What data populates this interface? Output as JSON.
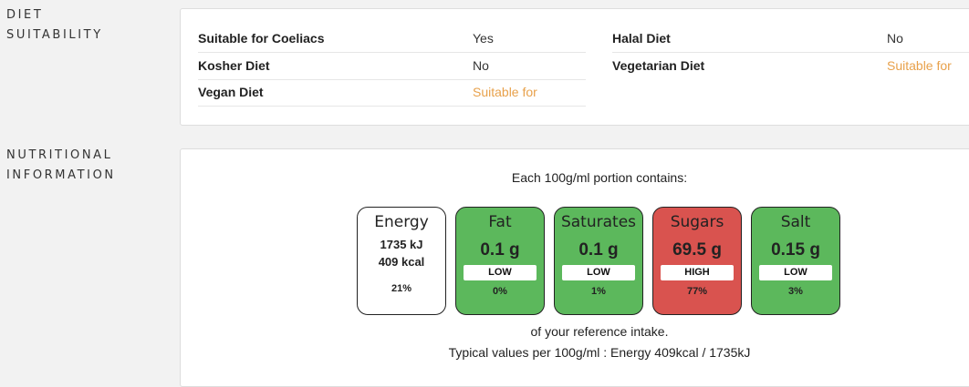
{
  "diet": {
    "section_label_1": "DIET",
    "section_label_2": "SUITABILITY",
    "rows": [
      {
        "label": "Suitable for Coeliacs",
        "value": "Yes"
      },
      {
        "label": "Halal Diet",
        "value": "No"
      },
      {
        "label": "Kosher Diet",
        "value": "No"
      },
      {
        "label": "Vegetarian Diet",
        "value": "Suitable for"
      },
      {
        "label": "Vegan Diet",
        "value": "Suitable for"
      }
    ]
  },
  "nutrition": {
    "section_label_1": "NUTRITIONAL",
    "section_label_2": "INFORMATION",
    "intro": "Each 100g/ml portion contains:",
    "energy": {
      "name": "Energy",
      "kj": "1735 kJ",
      "kcal": "409 kcal",
      "pct": "21%"
    },
    "items": [
      {
        "name": "Fat",
        "value": "0.1 g",
        "band": "LOW",
        "pct": "0%",
        "color": "#5cb85c"
      },
      {
        "name": "Saturates",
        "value": "0.1 g",
        "band": "LOW",
        "pct": "1%",
        "color": "#5cb85c"
      },
      {
        "name": "Sugars",
        "value": "69.5 g",
        "band": "HIGH",
        "pct": "77%",
        "color": "#d9534f"
      },
      {
        "name": "Salt",
        "value": "0.15 g",
        "band": "LOW",
        "pct": "3%",
        "color": "#5cb85c"
      }
    ],
    "reference": "of your reference intake.",
    "typical": "Typical values per 100g/ml : Energy 409kcal / 1735kJ"
  }
}
